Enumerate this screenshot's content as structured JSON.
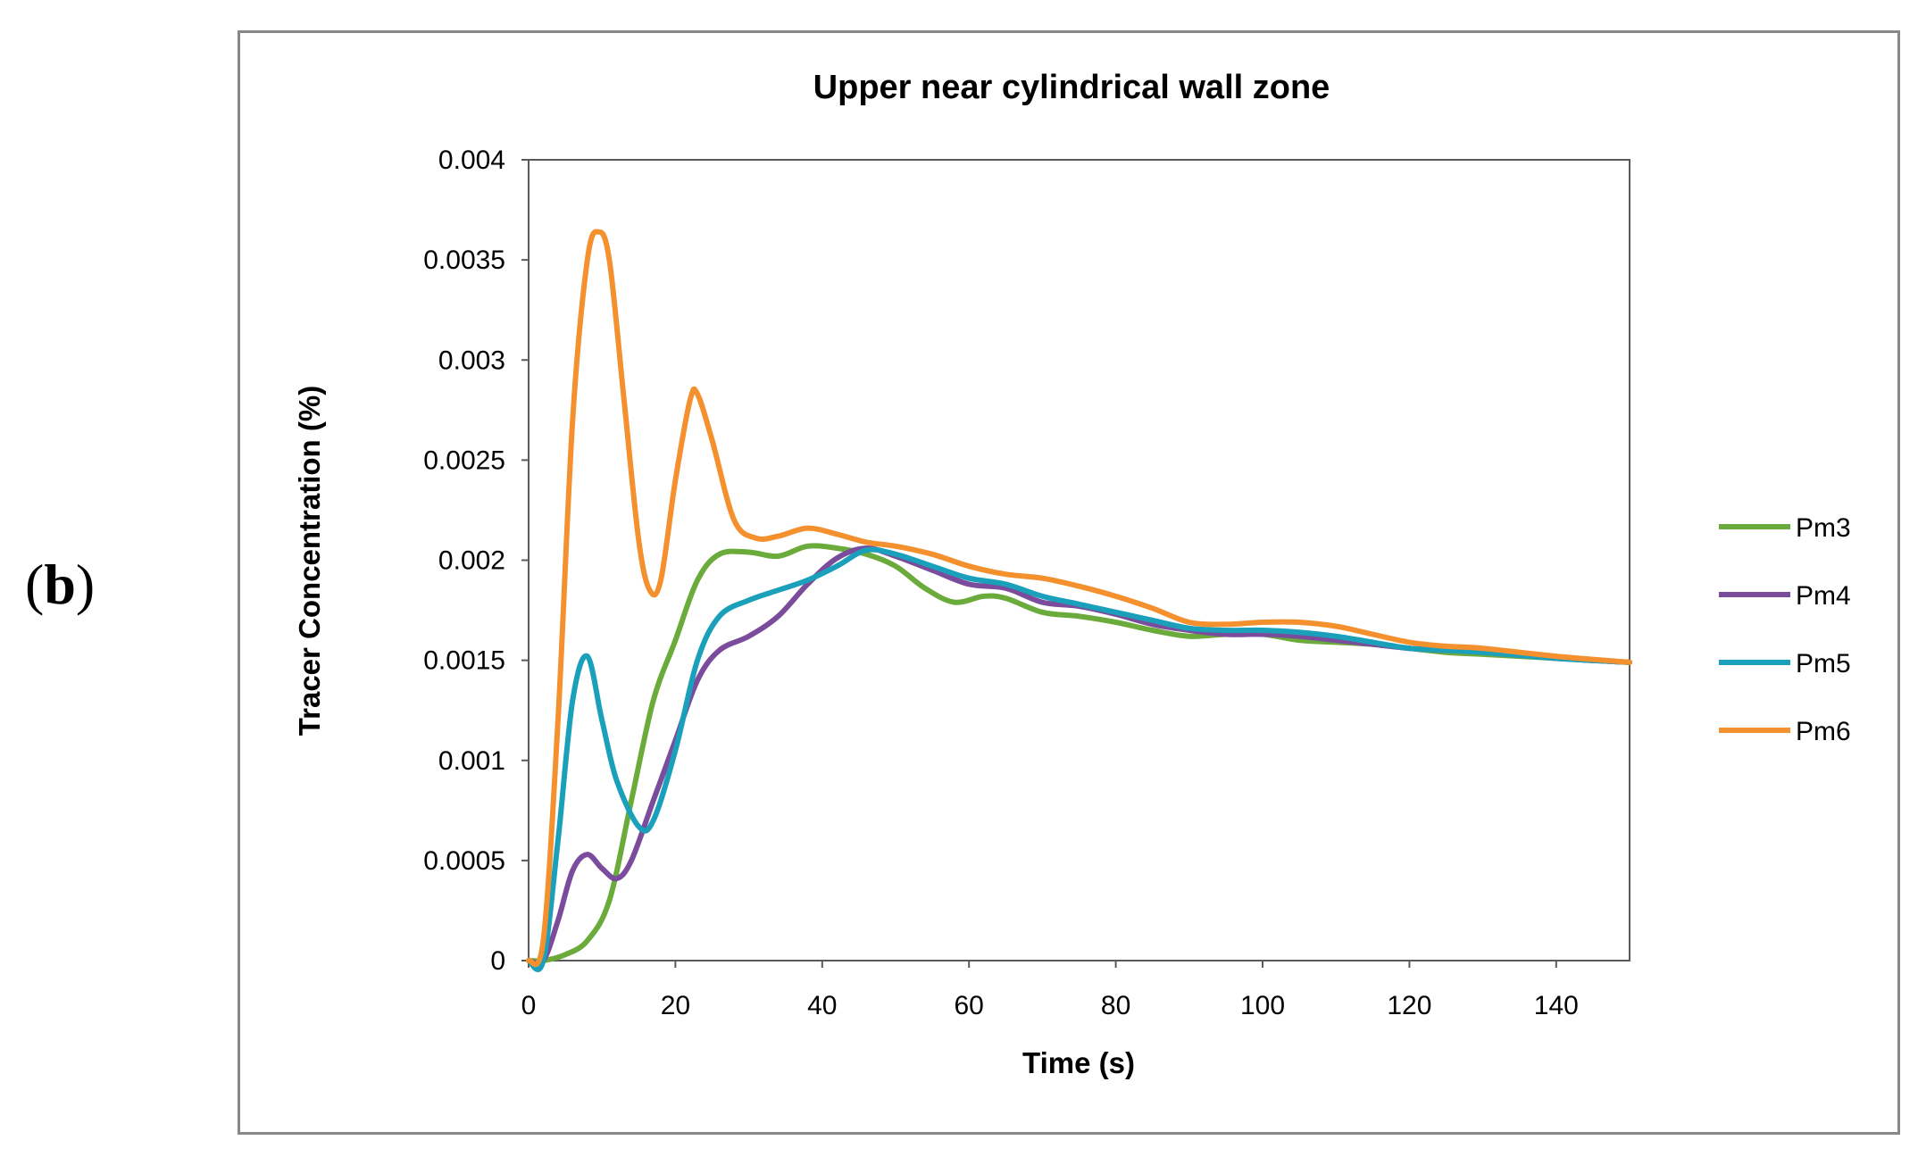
{
  "panel_label": {
    "open": "(",
    "letter": "b",
    "close": ")"
  },
  "chart_data": {
    "type": "line",
    "title": "Upper near cylindrical  wall zone",
    "xlabel": "Time (s)",
    "ylabel": "Tracer Concentration (%)",
    "xlim": [
      0,
      150
    ],
    "ylim": [
      0,
      0.004
    ],
    "xticks": [
      0,
      20,
      40,
      60,
      80,
      100,
      120,
      140
    ],
    "xtick_labels": [
      "0",
      "20",
      "40",
      "60",
      "80",
      "100",
      "120",
      "140"
    ],
    "yticks": [
      0,
      0.0005,
      0.001,
      0.0015,
      0.002,
      0.0025,
      0.003,
      0.0035,
      0.004
    ],
    "ytick_labels": [
      "0",
      "0.0005",
      "0.001",
      "0.0015",
      "0.002",
      "0.0025",
      "0.003",
      "0.0035",
      "0.004"
    ],
    "grid": false,
    "legend_position": "right",
    "series": [
      {
        "name": "Pm3",
        "color": "#6aab3c",
        "points": [
          [
            0,
            0
          ],
          [
            2,
            0
          ],
          [
            5,
            3e-05
          ],
          [
            8,
            0.0001
          ],
          [
            11,
            0.0003
          ],
          [
            14,
            0.0008
          ],
          [
            17,
            0.0013
          ],
          [
            20,
            0.0016
          ],
          [
            23,
            0.0019
          ],
          [
            26,
            0.00203
          ],
          [
            30,
            0.00204
          ],
          [
            34,
            0.00202
          ],
          [
            38,
            0.00207
          ],
          [
            42,
            0.00206
          ],
          [
            46,
            0.00203
          ],
          [
            50,
            0.00197
          ],
          [
            54,
            0.00186
          ],
          [
            58,
            0.00179
          ],
          [
            62,
            0.00182
          ],
          [
            65,
            0.00181
          ],
          [
            70,
            0.00174
          ],
          [
            75,
            0.00172
          ],
          [
            80,
            0.00169
          ],
          [
            85,
            0.00165
          ],
          [
            90,
            0.00162
          ],
          [
            95,
            0.00163
          ],
          [
            100,
            0.00163
          ],
          [
            105,
            0.0016
          ],
          [
            110,
            0.00159
          ],
          [
            115,
            0.00158
          ],
          [
            120,
            0.00156
          ],
          [
            125,
            0.00154
          ],
          [
            130,
            0.00153
          ],
          [
            140,
            0.00151
          ],
          [
            150,
            0.00149
          ]
        ]
      },
      {
        "name": "Pm4",
        "color": "#7b4c9b",
        "points": [
          [
            0,
            0
          ],
          [
            2,
            0
          ],
          [
            4,
            0.0002
          ],
          [
            6,
            0.00045
          ],
          [
            8,
            0.00053
          ],
          [
            10,
            0.00046
          ],
          [
            12,
            0.00041
          ],
          [
            14,
            0.0005
          ],
          [
            17,
            0.0008
          ],
          [
            20,
            0.0011
          ],
          [
            23,
            0.0014
          ],
          [
            26,
            0.00155
          ],
          [
            30,
            0.00162
          ],
          [
            34,
            0.00172
          ],
          [
            38,
            0.00188
          ],
          [
            42,
            0.00201
          ],
          [
            46,
            0.00206
          ],
          [
            50,
            0.00202
          ],
          [
            55,
            0.00195
          ],
          [
            60,
            0.00188
          ],
          [
            65,
            0.00186
          ],
          [
            70,
            0.00179
          ],
          [
            75,
            0.00177
          ],
          [
            80,
            0.00173
          ],
          [
            85,
            0.00168
          ],
          [
            90,
            0.00165
          ],
          [
            95,
            0.00163
          ],
          [
            100,
            0.00163
          ],
          [
            105,
            0.00162
          ],
          [
            110,
            0.0016
          ],
          [
            115,
            0.00158
          ],
          [
            120,
            0.00156
          ],
          [
            125,
            0.00155
          ],
          [
            130,
            0.00154
          ],
          [
            140,
            0.00151
          ],
          [
            150,
            0.00149
          ]
        ]
      },
      {
        "name": "Pm5",
        "color": "#1aa0bb",
        "points": [
          [
            0,
            0
          ],
          [
            2,
            0
          ],
          [
            4,
            0.0006
          ],
          [
            6,
            0.0013
          ],
          [
            8,
            0.00152
          ],
          [
            10,
            0.0012
          ],
          [
            12,
            0.0009
          ],
          [
            15,
            0.00067
          ],
          [
            17,
            0.0007
          ],
          [
            20,
            0.00105
          ],
          [
            23,
            0.0015
          ],
          [
            26,
            0.00172
          ],
          [
            30,
            0.0018
          ],
          [
            34,
            0.00185
          ],
          [
            38,
            0.0019
          ],
          [
            42,
            0.00197
          ],
          [
            46,
            0.00205
          ],
          [
            50,
            0.00203
          ],
          [
            55,
            0.00197
          ],
          [
            60,
            0.00191
          ],
          [
            65,
            0.00188
          ],
          [
            70,
            0.00182
          ],
          [
            75,
            0.00178
          ],
          [
            80,
            0.00174
          ],
          [
            85,
            0.0017
          ],
          [
            90,
            0.00166
          ],
          [
            95,
            0.00165
          ],
          [
            100,
            0.00165
          ],
          [
            105,
            0.00164
          ],
          [
            110,
            0.00162
          ],
          [
            115,
            0.00159
          ],
          [
            120,
            0.00156
          ],
          [
            125,
            0.00155
          ],
          [
            130,
            0.00154
          ],
          [
            140,
            0.00151
          ],
          [
            150,
            0.00149
          ]
        ]
      },
      {
        "name": "Pm6",
        "color": "#f4902e",
        "points": [
          [
            0,
            0
          ],
          [
            2,
            0.0001
          ],
          [
            4,
            0.0012
          ],
          [
            6,
            0.0027
          ],
          [
            8,
            0.0035
          ],
          [
            9.5,
            0.00364
          ],
          [
            11,
            0.0035
          ],
          [
            13,
            0.0028
          ],
          [
            15,
            0.0021
          ],
          [
            16.5,
            0.00185
          ],
          [
            18,
            0.0019
          ],
          [
            20,
            0.0024
          ],
          [
            22,
            0.0028
          ],
          [
            23,
            0.00283
          ],
          [
            25,
            0.0026
          ],
          [
            28,
            0.0022
          ],
          [
            31,
            0.00211
          ],
          [
            34,
            0.00212
          ],
          [
            38,
            0.00216
          ],
          [
            42,
            0.00213
          ],
          [
            46,
            0.00209
          ],
          [
            50,
            0.00207
          ],
          [
            55,
            0.00203
          ],
          [
            60,
            0.00197
          ],
          [
            65,
            0.00193
          ],
          [
            70,
            0.00191
          ],
          [
            75,
            0.00187
          ],
          [
            80,
            0.00182
          ],
          [
            85,
            0.00176
          ],
          [
            90,
            0.00169
          ],
          [
            95,
            0.00168
          ],
          [
            100,
            0.00169
          ],
          [
            105,
            0.00169
          ],
          [
            110,
            0.00167
          ],
          [
            115,
            0.00163
          ],
          [
            120,
            0.00159
          ],
          [
            125,
            0.00157
          ],
          [
            130,
            0.00156
          ],
          [
            140,
            0.00152
          ],
          [
            150,
            0.00149
          ]
        ]
      }
    ]
  }
}
